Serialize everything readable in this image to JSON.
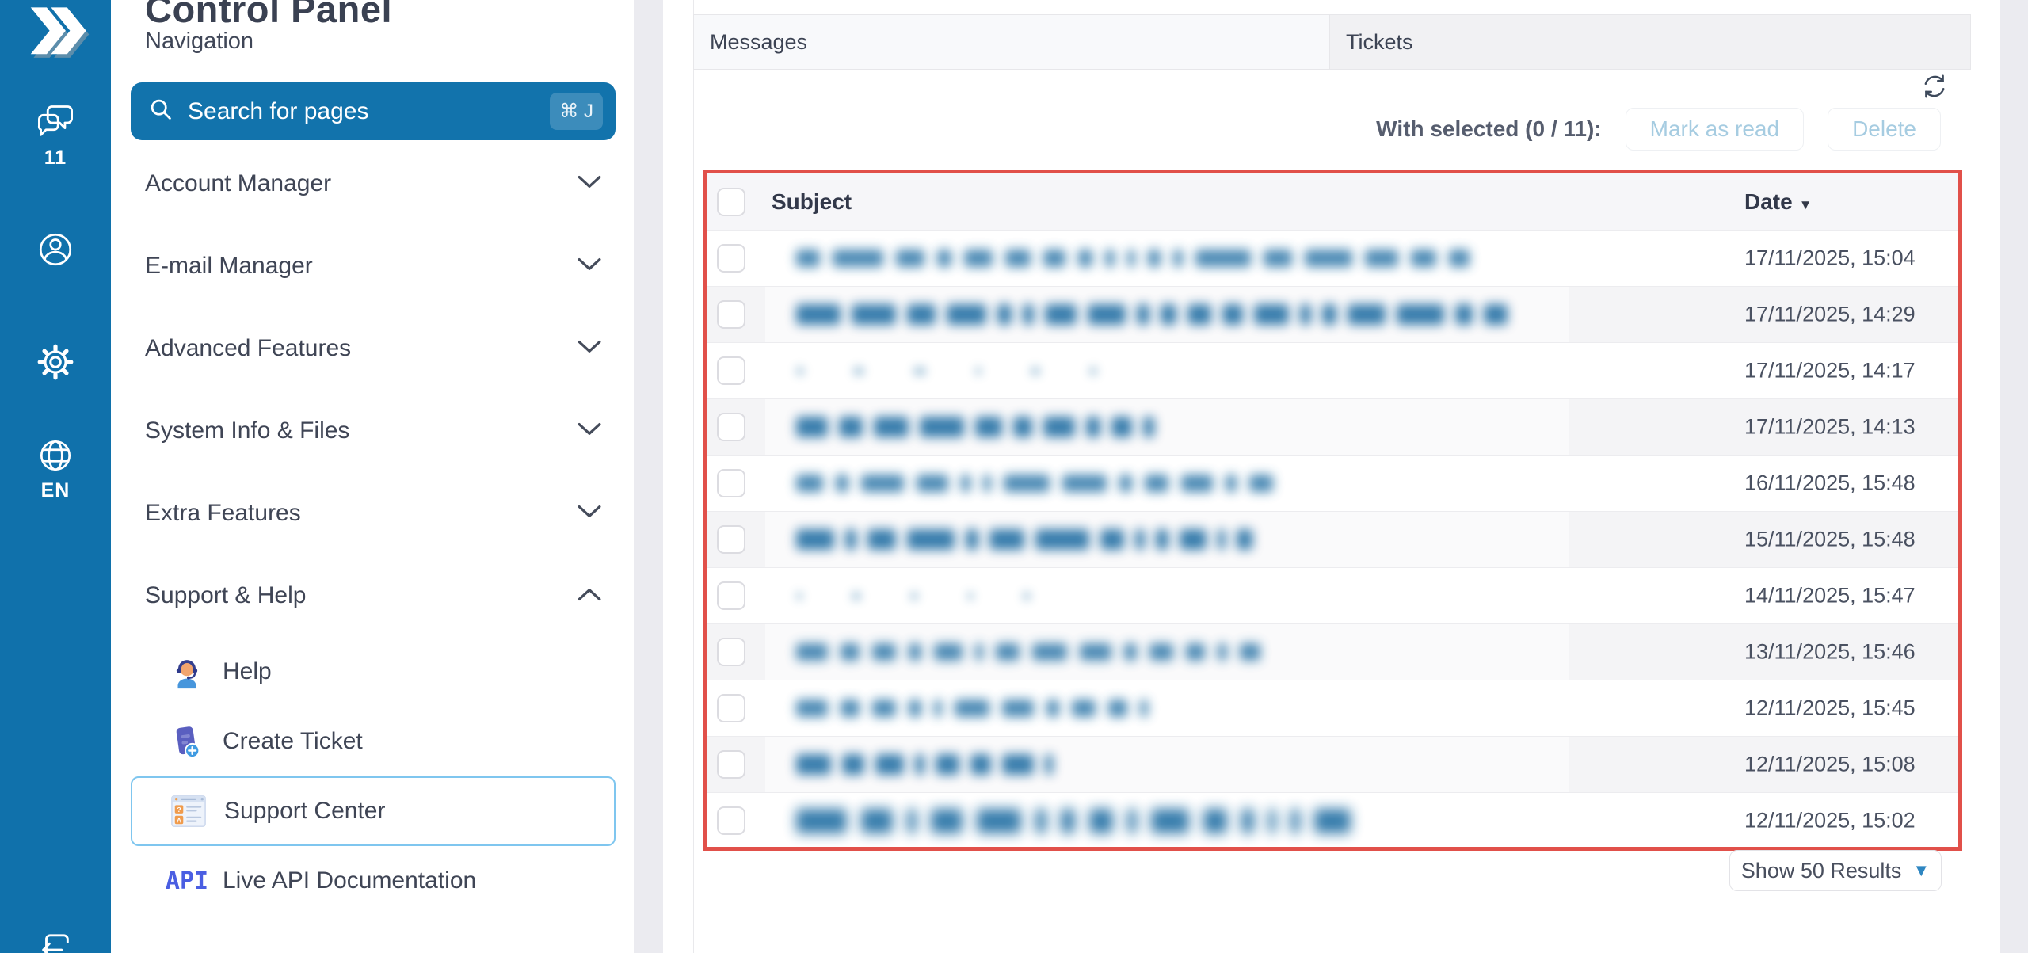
{
  "sidebar": {
    "chat_count": "11",
    "language": "EN"
  },
  "nav": {
    "title": "Control Panel",
    "subtitle": "Navigation",
    "search": {
      "placeholder": "Search for pages",
      "shortcut": "⌘ J"
    },
    "sections": [
      {
        "label": "Account Manager",
        "state": "collapsed"
      },
      {
        "label": "E-mail Manager",
        "state": "collapsed"
      },
      {
        "label": "Advanced Features",
        "state": "collapsed"
      },
      {
        "label": "System Info & Files",
        "state": "collapsed"
      },
      {
        "label": "Extra Features",
        "state": "collapsed"
      },
      {
        "label": "Support & Help",
        "state": "expanded",
        "items": [
          {
            "label": "Help",
            "icon": "help-agent-icon",
            "active": false
          },
          {
            "label": "Create Ticket",
            "icon": "create-ticket-icon",
            "active": false
          },
          {
            "label": "Support Center",
            "icon": "support-center-icon",
            "active": true
          },
          {
            "label": "Live API Documentation",
            "icon": "api-icon",
            "active": false
          }
        ]
      }
    ]
  },
  "main": {
    "tabs": [
      {
        "label": "Messages",
        "active": true
      },
      {
        "label": "Tickets",
        "active": false
      }
    ],
    "toolbar": {
      "with_selected": "With selected (0 / 11):",
      "mark_as_read": "Mark as read",
      "delete": "Delete"
    },
    "table": {
      "columns": {
        "subject": "Subject",
        "date": "Date"
      },
      "sort": {
        "column": "Date",
        "direction": "desc"
      },
      "rows": [
        {
          "date": "17/11/2025, 15:04",
          "blur": {
            "style": "normal",
            "words": [
              30,
              64,
              36,
              18,
              36,
              32,
              28,
              18,
              12,
              10,
              16,
              12,
              70,
              36,
              60,
              42,
              32,
              26
            ]
          }
        },
        {
          "date": "17/11/2025, 14:29",
          "blur": {
            "style": "bold",
            "words": [
              56,
              56,
              36,
              50,
              18,
              14,
              40,
              48,
              16,
              20,
              30,
              26,
              44,
              14,
              18,
              48,
              60,
              22,
              30
            ]
          }
        },
        {
          "date": "17/11/2025, 14:17",
          "blur": {
            "style": "faint",
            "words": [
              10,
              14,
              16,
              8,
              12,
              10
            ]
          }
        },
        {
          "date": "17/11/2025, 14:13",
          "blur": {
            "style": "bold",
            "words": [
              40,
              30,
              44,
              56,
              34,
              24,
              40,
              18,
              26,
              14
            ]
          }
        },
        {
          "date": "16/11/2025, 15:48",
          "blur": {
            "style": "normal",
            "words": [
              34,
              16,
              54,
              40,
              12,
              10,
              58,
              56,
              16,
              30,
              40,
              14,
              30
            ]
          }
        },
        {
          "date": "15/11/2025, 15:48",
          "blur": {
            "style": "bold",
            "words": [
              48,
              14,
              36,
              60,
              16,
              44,
              68,
              30,
              12,
              16,
              34,
              10,
              20
            ]
          }
        },
        {
          "date": "14/11/2025, 15:47",
          "blur": {
            "style": "faint",
            "words": [
              8,
              12,
              10,
              8,
              10
            ]
          }
        },
        {
          "date": "13/11/2025, 15:46",
          "blur": {
            "style": "normal",
            "words": [
              40,
              24,
              30,
              16,
              36,
              10,
              30,
              44,
              40,
              16,
              30,
              24,
              12,
              26
            ]
          }
        },
        {
          "date": "12/11/2025, 15:45",
          "blur": {
            "style": "normal",
            "words": [
              40,
              24,
              30,
              16,
              10,
              44,
              40,
              16,
              30,
              24,
              10
            ]
          }
        },
        {
          "date": "12/11/2025, 15:08",
          "blur": {
            "style": "bold",
            "words": [
              44,
              28,
              36,
              12,
              30,
              26,
              40,
              10
            ]
          }
        },
        {
          "date": "12/11/2025, 15:02",
          "blur": {
            "style": "large",
            "words": [
              64,
              40,
              12,
              40,
              56,
              14,
              18,
              30,
              12,
              48,
              30,
              16,
              10,
              12,
              46
            ]
          }
        }
      ]
    },
    "pagination": {
      "show_results": "Show 50 Results"
    }
  },
  "colors": {
    "sidebar_blue": "#1071ab",
    "accent_blue": "#1273ac",
    "link_blue": "#a6cce1",
    "highlight_border": "#7fc6ef",
    "table_outline_red": "#e1504a",
    "blur_text_blue": "#2d76a8"
  }
}
